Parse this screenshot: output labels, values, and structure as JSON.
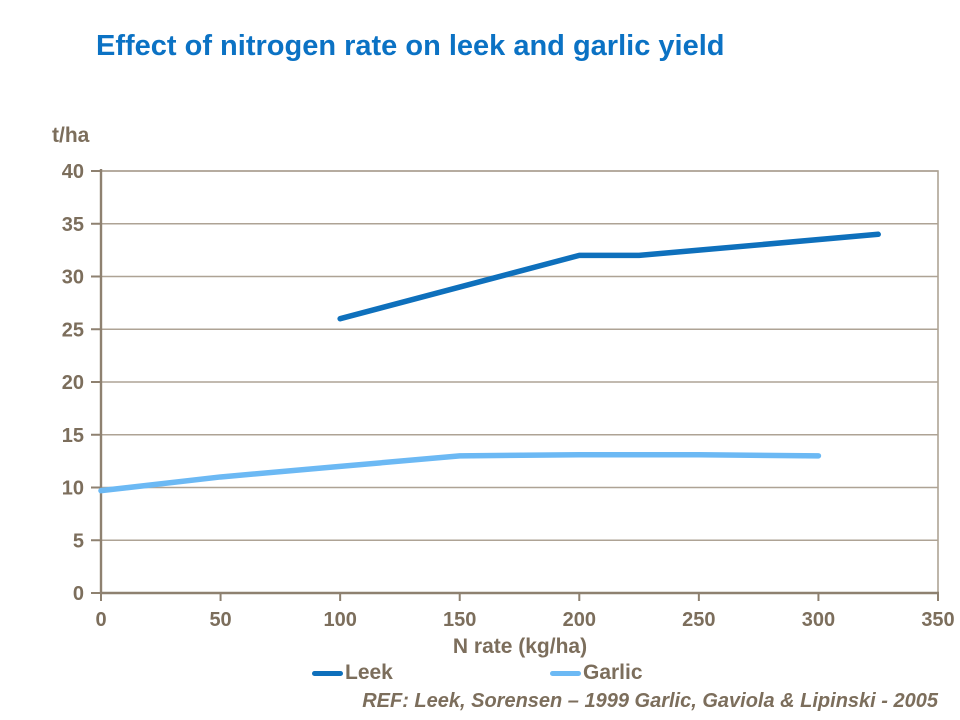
{
  "slide": {
    "title": "Effect of nitrogen rate on leek and garlic yield"
  },
  "colors": {
    "background": "#FFFFFF",
    "title_blue": "#0B72C4",
    "text_brown": "#7C6E5C",
    "axis_brown": "#8E8170",
    "gridline_taupe": "#AEA395",
    "leek_blue": "#0E70BC",
    "garlic_blue": "#6CB9F4"
  },
  "chart_data": {
    "type": "line",
    "title": "Effect of nitrogen rate on leek and garlic yield",
    "ylabel": "t/ha",
    "xlabel": "N rate (kg/ha)",
    "xlim": [
      0,
      350
    ],
    "ylim": [
      0,
      40
    ],
    "x_ticks": [
      0,
      50,
      100,
      150,
      200,
      250,
      300,
      350
    ],
    "y_ticks": [
      0,
      5,
      10,
      15,
      20,
      25,
      30,
      35,
      40
    ],
    "grid": "horizontal",
    "legend_position": "bottom",
    "series": [
      {
        "name": "Leek",
        "color": "#0E70BC",
        "points": [
          [
            100,
            26
          ],
          [
            200,
            32
          ],
          [
            225,
            32
          ],
          [
            325,
            34
          ]
        ]
      },
      {
        "name": "Garlic",
        "color": "#6CB9F4",
        "points": [
          [
            0,
            9.7
          ],
          [
            50,
            11
          ],
          [
            100,
            12
          ],
          [
            150,
            13
          ],
          [
            200,
            13.1
          ],
          [
            250,
            13.1
          ],
          [
            300,
            13
          ]
        ]
      }
    ]
  },
  "legend": {
    "items": [
      {
        "label": "Leek"
      },
      {
        "label": "Garlic"
      }
    ]
  },
  "footer": {
    "reference": "REF: Leek, Sorensen – 1999 Garlic, Gaviola & Lipinski - 2005"
  }
}
